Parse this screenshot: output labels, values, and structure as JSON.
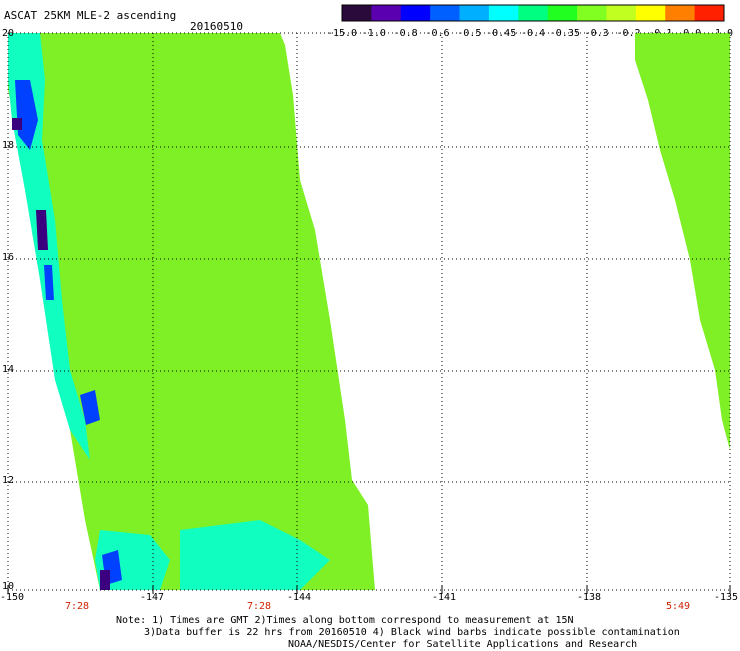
{
  "title": "ASCAT 25KM MLE-2 ascending",
  "date": "20160510",
  "colorbar": {
    "labels": [
      "-15.0",
      "-1.0",
      "-0.8",
      "-0.6",
      "-0.5",
      "-0.45",
      "-0.4",
      "-0.35",
      "-0.3",
      "-0.2",
      "-0.1",
      "0.0",
      "1.0"
    ],
    "colors": [
      "#2a0a3a",
      "#5a00b0",
      "#0000ff",
      "#0060ff",
      "#00b0ff",
      "#00ffff",
      "#00ff80",
      "#20ff20",
      "#80ff20",
      "#c0ff20",
      "#ffff00",
      "#ff8000",
      "#ff2000"
    ]
  },
  "axes": {
    "lon_ticks": [
      "-150",
      "-147",
      "-144",
      "-141",
      "-138",
      "-135"
    ],
    "lat_ticks": [
      "20",
      "18",
      "16",
      "14",
      "12",
      "10"
    ]
  },
  "pass_times": [
    "7:28",
    "7:28",
    "5:49"
  ],
  "notes": {
    "line1": "Note: 1) Times are GMT 2)Times along bottom correspond to measurement at 15N",
    "line2": "3)Data buffer is 22 hrs from 20160510 4) Black wind barbs indicate possible contamination",
    "line3": "NOAA/NESDIS/Center for Satellite Applications and Research"
  },
  "colors": {
    "swath_main": "#7ff025",
    "swath_cyan": "#10ffc0",
    "swath_blue": "#0040ff",
    "swath_purple": "#3a0080"
  }
}
